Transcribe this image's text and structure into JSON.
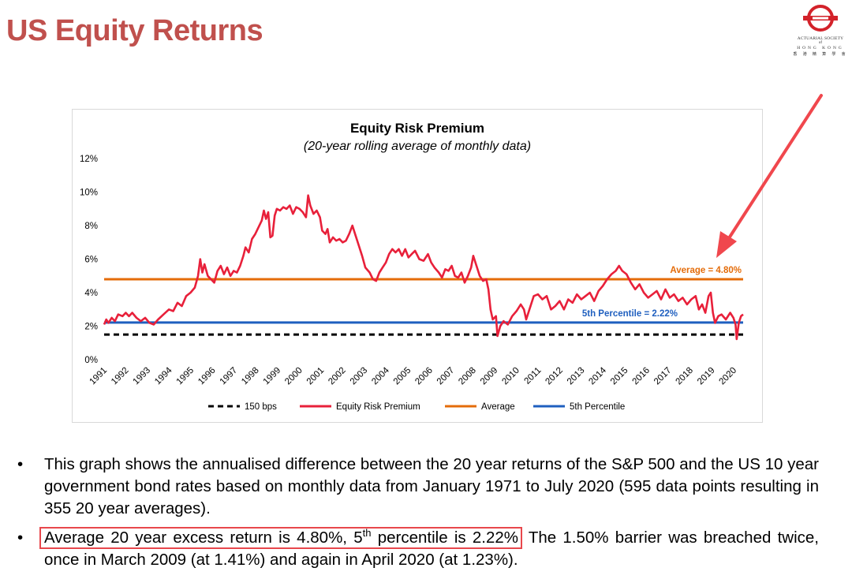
{
  "page": {
    "title": "US Equity Returns"
  },
  "logo": {
    "name": "actuarial-society-of-hong-kong-logo",
    "line1": "ACTUARIAL SOCIETY",
    "line2": "of",
    "line3": "HONG KONG",
    "line4": "香 港 精 算 學 會"
  },
  "bullets": {
    "b1": "This graph shows the annualised difference between the 20 year returns of the S&P 500 and the US 10 year government bond rates based on monthly data from January 1971 to July 2020 (595 data points resulting in 355 20 year averages).",
    "b2_highlight_a": "Average 20 year excess return is 4.80%, 5",
    "b2_highlight_sup": "th",
    "b2_highlight_b": " percentile is 2.22%",
    "b2_rest": " The 1.50% barrier was breached twice, once in March 2009 (at 1.41%) and again in April 2020 (at 1.23%)."
  },
  "colors": {
    "title": "#c0504d",
    "erp": "#e8203a",
    "average": "#e46c0a",
    "percentile": "#1f5fbf",
    "bps": "#000000",
    "arrow": "#f0474d"
  },
  "chart_data": {
    "type": "line",
    "title": "Equity Risk Premium",
    "subtitle": "(20-year rolling average of monthly data)",
    "xlabel": "",
    "ylabel": "",
    "ylim": [
      0,
      12
    ],
    "yticks": [
      "0%",
      "2%",
      "4%",
      "6%",
      "8%",
      "10%",
      "12%"
    ],
    "x_categories": [
      "1991",
      "1992",
      "1993",
      "1994",
      "1995",
      "1996",
      "1997",
      "1998",
      "1999",
      "2000",
      "2001",
      "2002",
      "2003",
      "2004",
      "2005",
      "2006",
      "2007",
      "2008",
      "2009",
      "2010",
      "2011",
      "2012",
      "2013",
      "2014",
      "2015",
      "2016",
      "2017",
      "2018",
      "2019",
      "2020"
    ],
    "xlim": [
      1991.0,
      2020.6
    ],
    "grid": false,
    "legend": "bottom",
    "legend_entries": [
      "150 bps",
      "Equity Risk Premium",
      "Average",
      "5th Percentile"
    ],
    "annotations": [
      {
        "text": "Average = 4.80%",
        "y": 4.8
      },
      {
        "text": "5th Percentile = 2.22%",
        "y": 2.22
      }
    ],
    "series": [
      {
        "name": "Equity Risk Premium",
        "points": [
          [
            1991.0,
            2.1
          ],
          [
            1991.1,
            2.4
          ],
          [
            1991.2,
            2.2
          ],
          [
            1991.35,
            2.5
          ],
          [
            1991.5,
            2.3
          ],
          [
            1991.65,
            2.7
          ],
          [
            1991.85,
            2.6
          ],
          [
            1992.0,
            2.8
          ],
          [
            1992.15,
            2.6
          ],
          [
            1992.3,
            2.8
          ],
          [
            1992.5,
            2.5
          ],
          [
            1992.7,
            2.3
          ],
          [
            1992.9,
            2.5
          ],
          [
            1993.1,
            2.2
          ],
          [
            1993.3,
            2.1
          ],
          [
            1993.5,
            2.4
          ],
          [
            1993.75,
            2.7
          ],
          [
            1994.0,
            3.0
          ],
          [
            1994.2,
            2.9
          ],
          [
            1994.4,
            3.4
          ],
          [
            1994.6,
            3.2
          ],
          [
            1994.8,
            3.8
          ],
          [
            1995.0,
            4.0
          ],
          [
            1995.2,
            4.3
          ],
          [
            1995.35,
            5.0
          ],
          [
            1995.45,
            6.0
          ],
          [
            1995.55,
            5.2
          ],
          [
            1995.65,
            5.7
          ],
          [
            1995.8,
            5.0
          ],
          [
            1995.95,
            4.8
          ],
          [
            1996.1,
            4.6
          ],
          [
            1996.25,
            5.3
          ],
          [
            1996.4,
            5.6
          ],
          [
            1996.55,
            5.1
          ],
          [
            1996.7,
            5.5
          ],
          [
            1996.85,
            5.0
          ],
          [
            1997.0,
            5.3
          ],
          [
            1997.15,
            5.2
          ],
          [
            1997.3,
            5.6
          ],
          [
            1997.45,
            6.2
          ],
          [
            1997.55,
            6.7
          ],
          [
            1997.7,
            6.4
          ],
          [
            1997.85,
            7.2
          ],
          [
            1998.0,
            7.5
          ],
          [
            1998.15,
            7.9
          ],
          [
            1998.3,
            8.3
          ],
          [
            1998.4,
            8.9
          ],
          [
            1998.5,
            8.4
          ],
          [
            1998.6,
            8.8
          ],
          [
            1998.7,
            7.3
          ],
          [
            1998.8,
            7.4
          ],
          [
            1998.9,
            8.6
          ],
          [
            1999.0,
            9.0
          ],
          [
            1999.15,
            8.9
          ],
          [
            1999.3,
            9.1
          ],
          [
            1999.45,
            9.0
          ],
          [
            1999.6,
            9.2
          ],
          [
            1999.75,
            8.7
          ],
          [
            1999.9,
            9.1
          ],
          [
            2000.05,
            9.0
          ],
          [
            2000.2,
            8.8
          ],
          [
            2000.35,
            8.5
          ],
          [
            2000.45,
            9.8
          ],
          [
            2000.55,
            9.2
          ],
          [
            2000.7,
            8.7
          ],
          [
            2000.85,
            8.9
          ],
          [
            2001.0,
            8.5
          ],
          [
            2001.1,
            7.7
          ],
          [
            2001.25,
            7.5
          ],
          [
            2001.35,
            7.8
          ],
          [
            2001.45,
            7.0
          ],
          [
            2001.6,
            7.3
          ],
          [
            2001.75,
            7.1
          ],
          [
            2001.9,
            7.2
          ],
          [
            2002.05,
            7.0
          ],
          [
            2002.2,
            7.1
          ],
          [
            2002.35,
            7.5
          ],
          [
            2002.5,
            8.0
          ],
          [
            2002.65,
            7.4
          ],
          [
            2002.8,
            6.8
          ],
          [
            2002.95,
            6.2
          ],
          [
            2003.1,
            5.5
          ],
          [
            2003.3,
            5.2
          ],
          [
            2003.45,
            4.8
          ],
          [
            2003.6,
            4.7
          ],
          [
            2003.75,
            5.2
          ],
          [
            2003.9,
            5.5
          ],
          [
            2004.05,
            5.8
          ],
          [
            2004.2,
            6.3
          ],
          [
            2004.35,
            6.6
          ],
          [
            2004.5,
            6.4
          ],
          [
            2004.65,
            6.6
          ],
          [
            2004.8,
            6.2
          ],
          [
            2004.95,
            6.6
          ],
          [
            2005.1,
            6.1
          ],
          [
            2005.25,
            6.3
          ],
          [
            2005.4,
            6.5
          ],
          [
            2005.6,
            6.0
          ],
          [
            2005.8,
            5.9
          ],
          [
            2006.0,
            6.3
          ],
          [
            2006.15,
            5.8
          ],
          [
            2006.3,
            5.5
          ],
          [
            2006.5,
            5.2
          ],
          [
            2006.65,
            4.9
          ],
          [
            2006.8,
            5.4
          ],
          [
            2006.95,
            5.3
          ],
          [
            2007.1,
            5.6
          ],
          [
            2007.25,
            5.0
          ],
          [
            2007.4,
            4.9
          ],
          [
            2007.55,
            5.2
          ],
          [
            2007.7,
            4.6
          ],
          [
            2007.85,
            5.0
          ],
          [
            2008.0,
            5.5
          ],
          [
            2008.1,
            6.2
          ],
          [
            2008.25,
            5.6
          ],
          [
            2008.4,
            5.0
          ],
          [
            2008.55,
            4.7
          ],
          [
            2008.7,
            4.8
          ],
          [
            2008.8,
            4.2
          ],
          [
            2008.9,
            3.0
          ],
          [
            2009.0,
            2.4
          ],
          [
            2009.15,
            2.6
          ],
          [
            2009.22,
            1.41
          ],
          [
            2009.35,
            2.0
          ],
          [
            2009.5,
            2.3
          ],
          [
            2009.7,
            2.1
          ],
          [
            2009.9,
            2.6
          ],
          [
            2010.1,
            2.9
          ],
          [
            2010.3,
            3.3
          ],
          [
            2010.45,
            3.0
          ],
          [
            2010.55,
            2.4
          ],
          [
            2010.7,
            3.0
          ],
          [
            2010.9,
            3.8
          ],
          [
            2011.1,
            3.9
          ],
          [
            2011.3,
            3.6
          ],
          [
            2011.5,
            3.8
          ],
          [
            2011.7,
            3.0
          ],
          [
            2011.9,
            3.2
          ],
          [
            2012.1,
            3.5
          ],
          [
            2012.3,
            3.0
          ],
          [
            2012.5,
            3.6
          ],
          [
            2012.7,
            3.4
          ],
          [
            2012.9,
            3.9
          ],
          [
            2013.1,
            3.6
          ],
          [
            2013.3,
            3.8
          ],
          [
            2013.5,
            4.0
          ],
          [
            2013.7,
            3.5
          ],
          [
            2013.9,
            4.1
          ],
          [
            2014.1,
            4.4
          ],
          [
            2014.3,
            4.8
          ],
          [
            2014.5,
            5.1
          ],
          [
            2014.7,
            5.3
          ],
          [
            2014.85,
            5.6
          ],
          [
            2015.0,
            5.3
          ],
          [
            2015.2,
            5.1
          ],
          [
            2015.4,
            4.6
          ],
          [
            2015.6,
            4.2
          ],
          [
            2015.8,
            4.5
          ],
          [
            2016.0,
            4.0
          ],
          [
            2016.2,
            3.7
          ],
          [
            2016.4,
            3.9
          ],
          [
            2016.6,
            4.1
          ],
          [
            2016.8,
            3.6
          ],
          [
            2017.0,
            4.2
          ],
          [
            2017.2,
            3.7
          ],
          [
            2017.4,
            3.9
          ],
          [
            2017.6,
            3.5
          ],
          [
            2017.8,
            3.7
          ],
          [
            2018.0,
            3.3
          ],
          [
            2018.2,
            3.6
          ],
          [
            2018.4,
            3.8
          ],
          [
            2018.55,
            3.0
          ],
          [
            2018.7,
            3.3
          ],
          [
            2018.85,
            2.8
          ],
          [
            2019.0,
            3.8
          ],
          [
            2019.1,
            4.0
          ],
          [
            2019.2,
            2.8
          ],
          [
            2019.3,
            2.2
          ],
          [
            2019.45,
            2.6
          ],
          [
            2019.6,
            2.7
          ],
          [
            2019.8,
            2.4
          ],
          [
            2020.0,
            2.8
          ],
          [
            2020.15,
            2.5
          ],
          [
            2020.25,
            2.1
          ],
          [
            2020.3,
            1.23
          ],
          [
            2020.4,
            2.2
          ],
          [
            2020.5,
            2.6
          ],
          [
            2020.6,
            2.7
          ]
        ]
      },
      {
        "name": "150 bps",
        "constant": 1.5
      },
      {
        "name": "Average",
        "constant": 4.8
      },
      {
        "name": "5th Percentile",
        "constant": 2.22
      }
    ]
  }
}
